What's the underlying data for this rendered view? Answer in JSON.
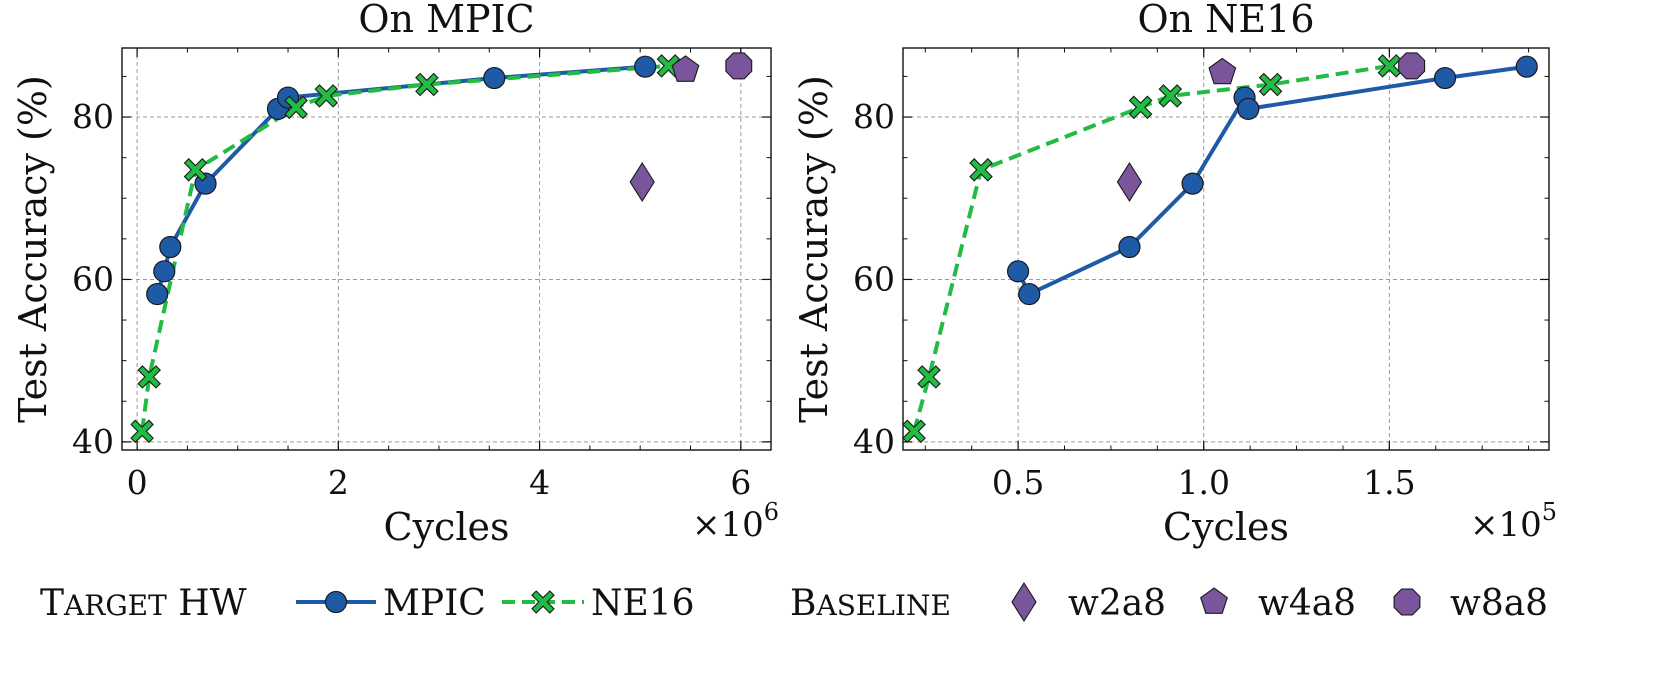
{
  "chart_data": [
    {
      "type": "line",
      "title": "On MPIC",
      "xlabel": "Cycles",
      "ylabel": "Test Accuracy (%)",
      "x_multiplier": "×10",
      "x_multiplier_exp": "6",
      "xlim": [
        -0.15,
        6.3
      ],
      "ylim": [
        39,
        88.5
      ],
      "xticks": [
        0,
        2,
        4,
        6
      ],
      "xtick_labels": [
        "0",
        "2",
        "4",
        "6"
      ],
      "yticks": [
        40,
        60,
        80
      ],
      "ytick_labels": [
        "40",
        "60",
        "80"
      ],
      "grid": true,
      "series": [
        {
          "name": "MPIC",
          "color": "#1f5aa6",
          "marker": "circle",
          "style": "solid",
          "points": [
            [
              0.2,
              58.2
            ],
            [
              0.27,
              61.0
            ],
            [
              0.33,
              64.0
            ],
            [
              0.68,
              71.8
            ],
            [
              1.4,
              81.0
            ],
            [
              1.5,
              82.4
            ],
            [
              3.55,
              84.8
            ],
            [
              5.05,
              86.2
            ]
          ]
        },
        {
          "name": "NE16",
          "color": "#22bb44",
          "marker": "x",
          "style": "dashed",
          "points": [
            [
              0.05,
              41.3
            ],
            [
              0.12,
              48.0
            ],
            [
              0.58,
              73.5
            ],
            [
              1.58,
              81.2
            ],
            [
              1.88,
              82.6
            ],
            [
              2.88,
              84.0
            ],
            [
              5.28,
              86.3
            ]
          ]
        }
      ],
      "baselines": [
        {
          "name": "w2a8",
          "marker": "diamond",
          "x": 5.02,
          "y": 72.0
        },
        {
          "name": "w4a8",
          "marker": "pentagon",
          "x": 5.45,
          "y": 85.8
        },
        {
          "name": "w8a8",
          "marker": "octagon",
          "x": 5.98,
          "y": 86.3
        }
      ]
    },
    {
      "type": "line",
      "title": "On NE16",
      "xlabel": "Cycles",
      "ylabel": "Test Accuracy (%)",
      "x_multiplier": "×10",
      "x_multiplier_exp": "5",
      "xlim": [
        0.19,
        1.93
      ],
      "ylim": [
        39,
        88.5
      ],
      "xticks": [
        0.5,
        1.0,
        1.5
      ],
      "xtick_labels": [
        "0.5",
        "1.0",
        "1.5"
      ],
      "yticks": [
        40,
        60,
        80
      ],
      "ytick_labels": [
        "40",
        "60",
        "80"
      ],
      "grid": true,
      "series": [
        {
          "name": "MPIC",
          "color": "#1f5aa6",
          "marker": "circle",
          "style": "solid",
          "points": [
            [
              0.5,
              61.0
            ],
            [
              0.53,
              58.2
            ],
            [
              0.8,
              64.0
            ],
            [
              0.97,
              71.8
            ],
            [
              1.11,
              82.4
            ],
            [
              1.12,
              81.0
            ],
            [
              1.65,
              84.8
            ],
            [
              1.87,
              86.2
            ]
          ]
        },
        {
          "name": "NE16",
          "color": "#22bb44",
          "marker": "x",
          "style": "dashed",
          "points": [
            [
              0.22,
              41.3
            ],
            [
              0.26,
              48.0
            ],
            [
              0.4,
              73.5
            ],
            [
              0.83,
              81.2
            ],
            [
              0.91,
              82.6
            ],
            [
              1.18,
              84.0
            ],
            [
              1.5,
              86.3
            ]
          ]
        }
      ],
      "baselines": [
        {
          "name": "w2a8",
          "marker": "diamond",
          "x": 0.8,
          "y": 72.0
        },
        {
          "name": "w4a8",
          "marker": "pentagon",
          "x": 1.05,
          "y": 85.5
        },
        {
          "name": "w8a8",
          "marker": "octagon",
          "x": 1.56,
          "y": 86.3
        }
      ]
    }
  ],
  "legend": {
    "target_title": "Target HW",
    "baseline_title": "Baseline",
    "entries": [
      "MPIC",
      "NE16",
      "w2a8",
      "w4a8",
      "w8a8"
    ]
  },
  "colors": {
    "mpic": "#1f5aa6",
    "ne16": "#22bb44",
    "baseline": "#7a559b",
    "grid": "#9a9a9a"
  }
}
